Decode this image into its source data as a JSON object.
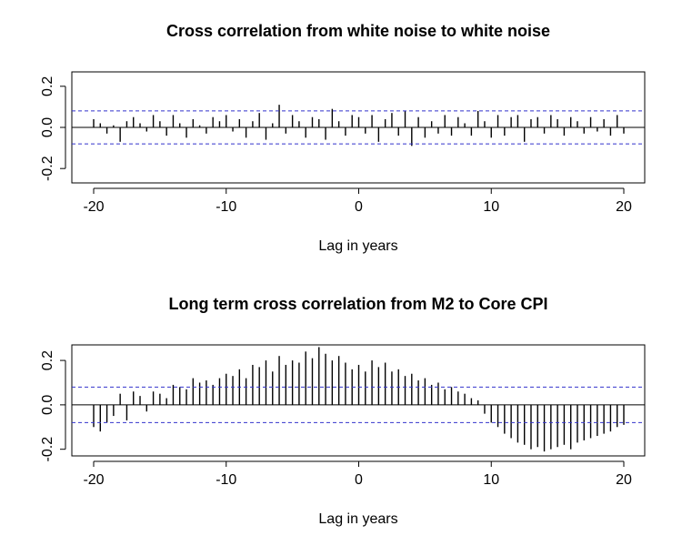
{
  "chart_data": [
    {
      "type": "bar",
      "title": "Cross correlation from white noise to white noise",
      "xlabel": "Lag in years",
      "ylabel": "",
      "xlim": [
        -20,
        20
      ],
      "ylim": [
        -0.27,
        0.27
      ],
      "x_ticks": [
        -20,
        -10,
        0,
        10,
        20
      ],
      "y_ticks": [
        -0.2,
        0.0,
        0.2
      ],
      "x_tick_labels": [
        "-20",
        "-10",
        "0",
        "10",
        "20"
      ],
      "y_tick_labels": [
        "-0.2",
        "0.0",
        "0.2"
      ],
      "confidence_bounds": [
        -0.08,
        0.08
      ],
      "grid": false,
      "legend": "none",
      "colors": {
        "bars": "#000000",
        "bounds": "#3333cc",
        "zero": "#000000"
      },
      "x": [
        -20,
        -19.5,
        -19,
        -18.5,
        -18,
        -17.5,
        -17,
        -16.5,
        -16,
        -15.5,
        -15,
        -14.5,
        -14,
        -13.5,
        -13,
        -12.5,
        -12,
        -11.5,
        -11,
        -10.5,
        -10,
        -9.5,
        -9,
        -8.5,
        -8,
        -7.5,
        -7,
        -6.5,
        -6,
        -5.5,
        -5,
        -4.5,
        -4,
        -3.5,
        -3,
        -2.5,
        -2,
        -1.5,
        -1,
        -0.5,
        0,
        0.5,
        1,
        1.5,
        2,
        2.5,
        3,
        3.5,
        4,
        4.5,
        5,
        5.5,
        6,
        6.5,
        7,
        7.5,
        8,
        8.5,
        9,
        9.5,
        10,
        10.5,
        11,
        11.5,
        12,
        12.5,
        13,
        13.5,
        14,
        14.5,
        15,
        15.5,
        16,
        16.5,
        17,
        17.5,
        18,
        18.5,
        19,
        19.5,
        20
      ],
      "values": [
        0.04,
        0.02,
        -0.03,
        0.01,
        -0.07,
        0.03,
        0.05,
        0.02,
        -0.02,
        0.06,
        0.03,
        -0.04,
        0.06,
        0.02,
        -0.05,
        0.04,
        0.01,
        -0.03,
        0.05,
        0.03,
        0.06,
        -0.02,
        0.04,
        -0.05,
        0.03,
        0.07,
        -0.06,
        0.02,
        0.11,
        -0.03,
        0.06,
        0.03,
        -0.05,
        0.05,
        0.04,
        -0.06,
        0.09,
        0.03,
        -0.04,
        0.06,
        0.05,
        -0.03,
        0.06,
        -0.07,
        0.04,
        0.07,
        -0.04,
        0.08,
        -0.09,
        0.05,
        -0.05,
        0.03,
        -0.03,
        0.06,
        -0.04,
        0.05,
        0.02,
        -0.04,
        0.08,
        0.03,
        -0.05,
        0.06,
        -0.04,
        0.05,
        0.06,
        -0.07,
        0.04,
        0.05,
        -0.03,
        0.06,
        0.04,
        -0.04,
        0.05,
        0.03,
        -0.03,
        0.05,
        -0.02,
        0.04,
        -0.04,
        0.06,
        -0.03
      ]
    },
    {
      "type": "bar",
      "title": "Long term cross correlation from M2 to Core CPI",
      "xlabel": "Lag in years",
      "ylabel": "",
      "xlim": [
        -20,
        20
      ],
      "ylim": [
        -0.23,
        0.27
      ],
      "x_ticks": [
        -20,
        -10,
        0,
        10,
        20
      ],
      "y_ticks": [
        -0.2,
        0.0,
        0.2
      ],
      "x_tick_labels": [
        "-20",
        "-10",
        "0",
        "10",
        "20"
      ],
      "y_tick_labels": [
        "-0.2",
        "0.0",
        "0.2"
      ],
      "confidence_bounds": [
        -0.08,
        0.08
      ],
      "grid": false,
      "legend": "none",
      "colors": {
        "bars": "#000000",
        "bounds": "#3333cc",
        "zero": "#000000"
      },
      "x": [
        -20,
        -19.5,
        -19,
        -18.5,
        -18,
        -17.5,
        -17,
        -16.5,
        -16,
        -15.5,
        -15,
        -14.5,
        -14,
        -13.5,
        -13,
        -12.5,
        -12,
        -11.5,
        -11,
        -10.5,
        -10,
        -9.5,
        -9,
        -8.5,
        -8,
        -7.5,
        -7,
        -6.5,
        -6,
        -5.5,
        -5,
        -4.5,
        -4,
        -3.5,
        -3,
        -2.5,
        -2,
        -1.5,
        -1,
        -0.5,
        0,
        0.5,
        1,
        1.5,
        2,
        2.5,
        3,
        3.5,
        4,
        4.5,
        5,
        5.5,
        6,
        6.5,
        7,
        7.5,
        8,
        8.5,
        9,
        9.5,
        10,
        10.5,
        11,
        11.5,
        12,
        12.5,
        13,
        13.5,
        14,
        14.5,
        15,
        15.5,
        16,
        16.5,
        17,
        17.5,
        18,
        18.5,
        19,
        19.5,
        20
      ],
      "values": [
        -0.1,
        -0.12,
        -0.08,
        -0.05,
        0.05,
        -0.07,
        0.06,
        0.04,
        -0.03,
        0.06,
        0.05,
        0.03,
        0.09,
        0.08,
        0.07,
        0.12,
        0.1,
        0.11,
        0.09,
        0.12,
        0.14,
        0.13,
        0.16,
        0.12,
        0.18,
        0.17,
        0.2,
        0.15,
        0.22,
        0.18,
        0.2,
        0.19,
        0.24,
        0.21,
        0.26,
        0.23,
        0.2,
        0.22,
        0.19,
        0.16,
        0.18,
        0.15,
        0.2,
        0.17,
        0.19,
        0.15,
        0.16,
        0.13,
        0.14,
        0.11,
        0.12,
        0.09,
        0.1,
        0.07,
        0.08,
        0.06,
        0.05,
        0.03,
        0.02,
        -0.04,
        -0.08,
        -0.1,
        -0.13,
        -0.15,
        -0.17,
        -0.18,
        -0.2,
        -0.19,
        -0.21,
        -0.2,
        -0.19,
        -0.18,
        -0.2,
        -0.17,
        -0.16,
        -0.15,
        -0.14,
        -0.13,
        -0.12,
        -0.1,
        -0.09
      ]
    }
  ]
}
